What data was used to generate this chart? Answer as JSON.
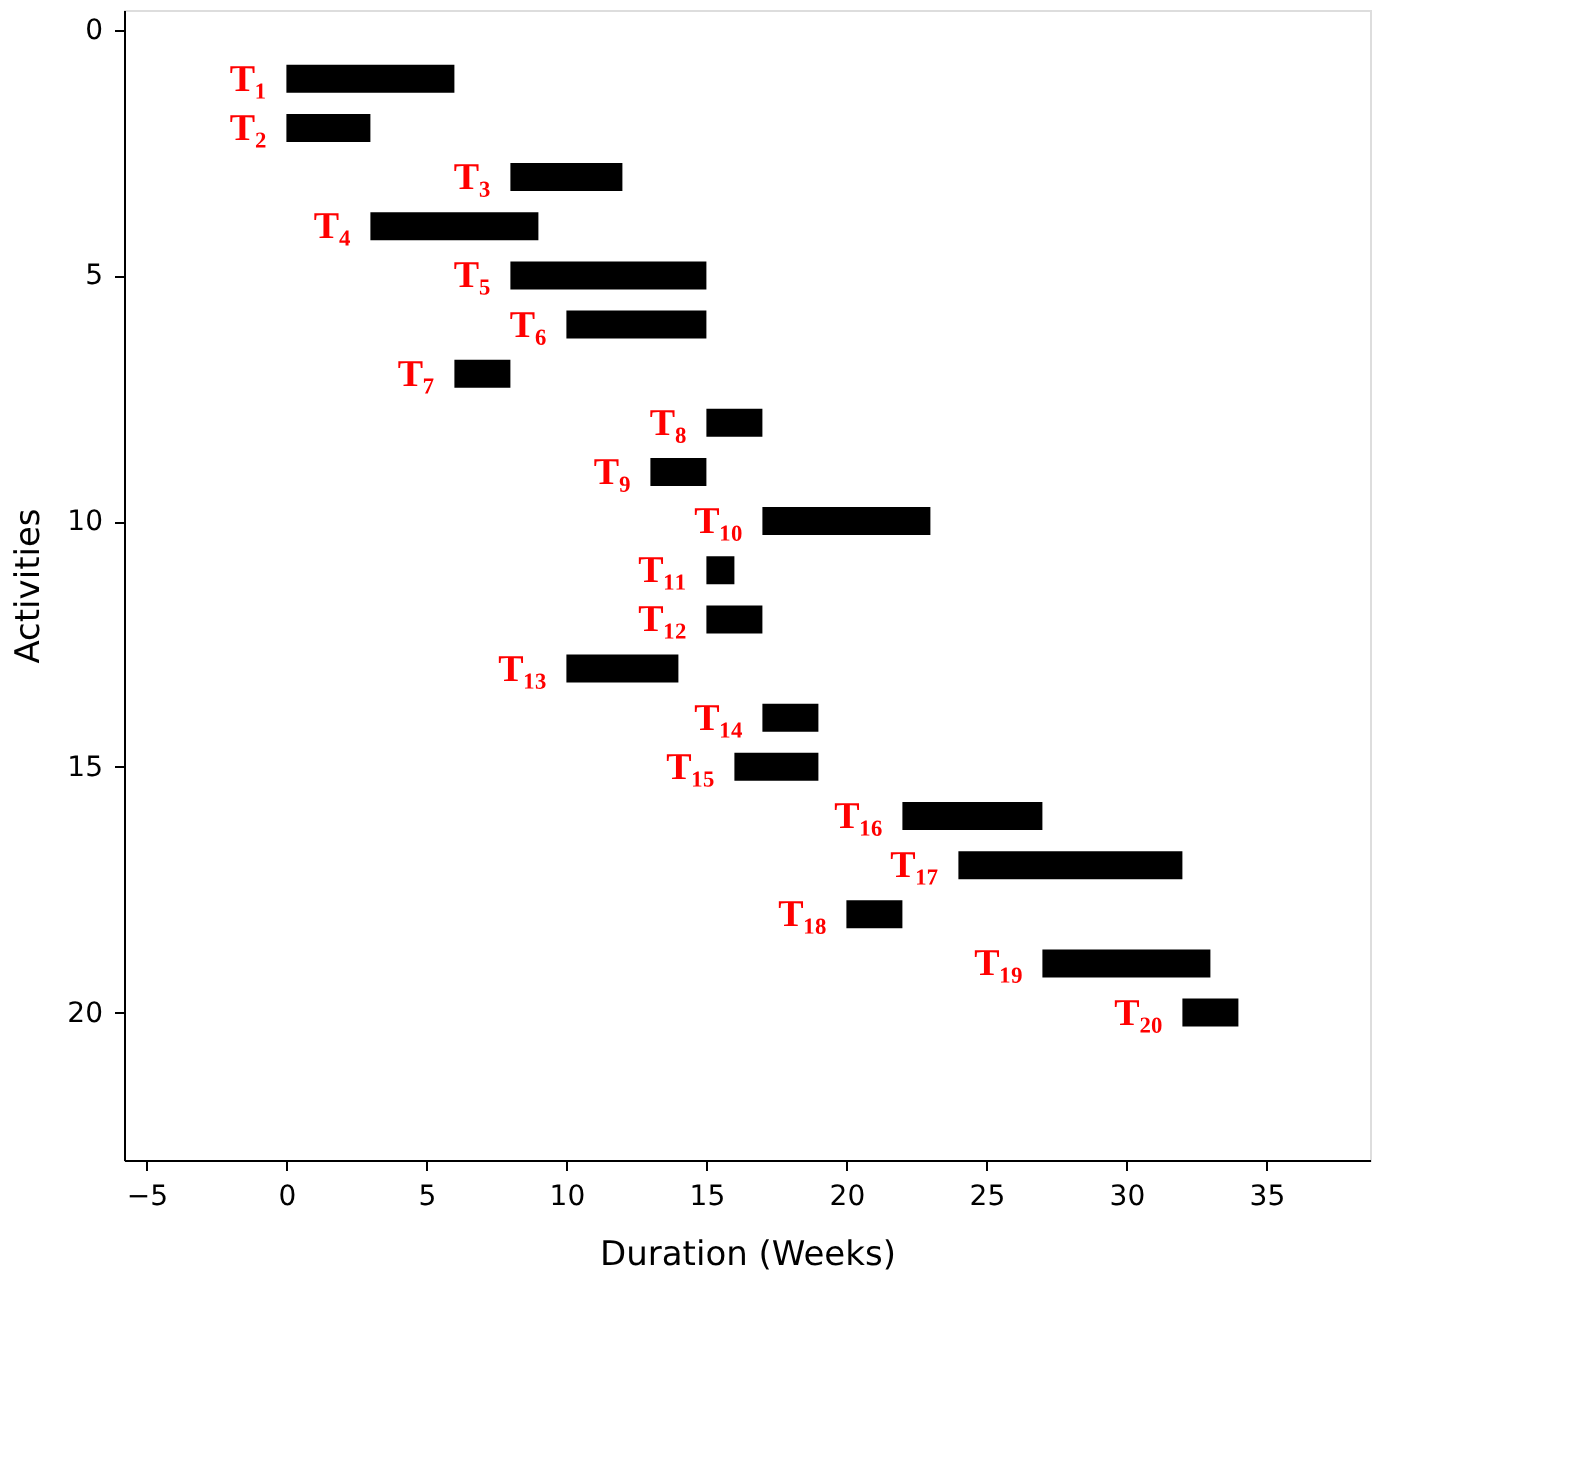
{
  "chart_data": {
    "type": "bar",
    "orientation": "horizontal",
    "xlabel": "Duration (Weeks)",
    "ylabel": "Activities",
    "x": [
      1,
      2,
      3,
      4,
      5,
      6,
      7,
      8,
      9,
      10,
      11,
      12,
      13,
      14,
      15,
      16,
      17,
      18,
      19,
      20
    ],
    "base": [
      0,
      0,
      8,
      3,
      8,
      10,
      6,
      15,
      13,
      17,
      15,
      15,
      10,
      17,
      16,
      22,
      24,
      20,
      27,
      32
    ],
    "values": [
      6,
      3,
      4,
      6,
      7,
      5,
      2,
      2,
      2,
      6,
      1,
      2,
      4,
      2,
      3,
      5,
      8,
      2,
      6,
      2
    ],
    "color": "#000000",
    "xlim": [
      -5.8,
      38.7
    ],
    "xticks": [
      -5,
      0,
      5,
      10,
      15,
      20,
      25,
      30,
      35
    ],
    "ylim": [
      23,
      -0.4
    ],
    "yticks": [
      0,
      5,
      10,
      15,
      20
    ],
    "annotations": [
      {
        "text": "T₁",
        "x": 0,
        "y": 1
      },
      {
        "text": "T₂",
        "x": 0,
        "y": 2
      },
      {
        "text": "T₃",
        "x": 8,
        "y": 3
      },
      {
        "text": "T₄",
        "x": 3,
        "y": 4
      },
      {
        "text": "T₅",
        "x": 8,
        "y": 5
      },
      {
        "text": "T₆",
        "x": 10,
        "y": 6
      },
      {
        "text": "T₇",
        "x": 6,
        "y": 7
      },
      {
        "text": "T₈",
        "x": 15,
        "y": 8
      },
      {
        "text": "T₉",
        "x": 13,
        "y": 9
      },
      {
        "text": "T₁₀",
        "x": 17,
        "y": 10
      },
      {
        "text": "T₁₁",
        "x": 15,
        "y": 11
      },
      {
        "text": "T₁₂",
        "x": 15,
        "y": 12
      },
      {
        "text": "T₁₃",
        "x": 10,
        "y": 13
      },
      {
        "text": "T₁₄",
        "x": 17,
        "y": 14
      },
      {
        "text": "T₁₅",
        "x": 16,
        "y": 15
      },
      {
        "text": "T₁₆",
        "x": 22,
        "y": 16
      },
      {
        "text": "T₁₇",
        "x": 24,
        "y": 17
      },
      {
        "text": "T₁₈",
        "x": 20,
        "y": 18
      },
      {
        "text": "T₁₉",
        "x": 27,
        "y": 19
      },
      {
        "text": "T₂₀",
        "x": 32,
        "y": 20
      }
    ]
  }
}
